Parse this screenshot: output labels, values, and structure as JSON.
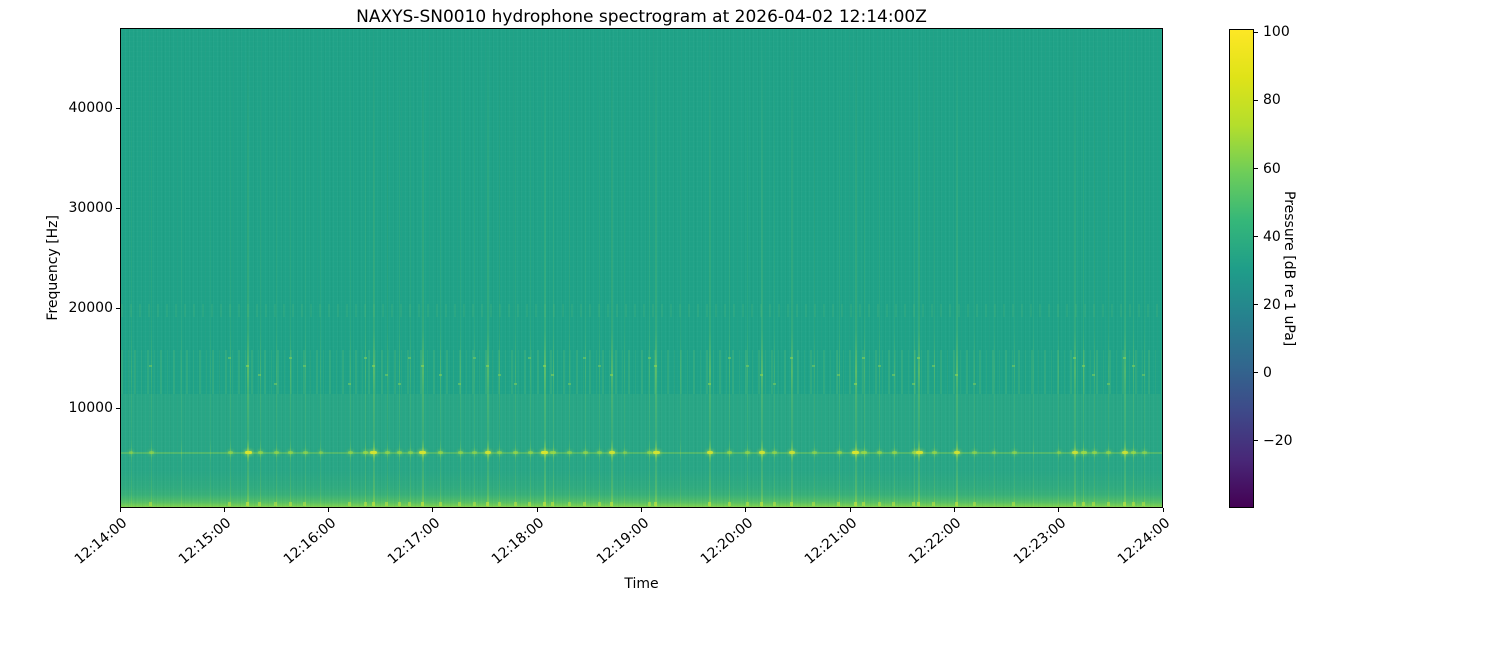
{
  "chart_data": {
    "type": "heatmap",
    "subtype": "spectrogram",
    "title": "NAXYS-SN0010 hydrophone spectrogram at 2026-04-02 12:14:00Z",
    "xlabel": "Time",
    "ylabel": "Frequency [Hz]",
    "x_tick_labels": [
      "12:14:00",
      "12:15:00",
      "12:16:00",
      "12:17:00",
      "12:18:00",
      "12:19:00",
      "12:20:00",
      "12:21:00",
      "12:22:00",
      "12:23:00",
      "12:24:00"
    ],
    "y_tick_values": [
      10000,
      20000,
      30000,
      40000
    ],
    "y_tick_labels": [
      "10000",
      "20000",
      "30000",
      "40000"
    ],
    "y_range_hz": [
      0,
      48000
    ],
    "grid": false,
    "legend": "none",
    "colormap": "viridis",
    "colorbar": {
      "label": "Pressure [dB re 1 uPa]",
      "tick_values": [
        100,
        80,
        60,
        40,
        20,
        0,
        -20
      ],
      "tick_labels": [
        "100",
        "80",
        "60",
        "40",
        "20",
        "0",
        "−20"
      ],
      "value_range": [
        -39.7,
        101
      ]
    },
    "colors": {
      "background_teal": "#1fa287",
      "streak_green": "#a3dd46",
      "tonal_bright": "#d8e52f",
      "low_band_edge": "#84d44c",
      "colorbar_bottom": "#440154",
      "colorbar_top": "#fde725"
    },
    "features": {
      "background_level_db": 47,
      "tonal_line_hz": 5400,
      "broadband_activity_band_hz": [
        11300,
        15800
      ],
      "background_shade_boundary_hz": 11300,
      "low_frequency_band_hz": [
        0,
        1800
      ]
    },
    "transients": [
      [
        0.01,
        0.45
      ],
      [
        0.029,
        0.5
      ],
      [
        0.058,
        0.4
      ],
      [
        0.086,
        0.35
      ],
      [
        0.105,
        0.55
      ],
      [
        0.122,
        0.95
      ],
      [
        0.134,
        0.6
      ],
      [
        0.149,
        0.55
      ],
      [
        0.163,
        0.6
      ],
      [
        0.177,
        0.5
      ],
      [
        0.192,
        0.45
      ],
      [
        0.22,
        0.55
      ],
      [
        0.235,
        0.65
      ],
      [
        0.243,
        0.9
      ],
      [
        0.256,
        0.55
      ],
      [
        0.268,
        0.6
      ],
      [
        0.278,
        0.5
      ],
      [
        0.29,
        0.9
      ],
      [
        0.307,
        0.6
      ],
      [
        0.326,
        0.55
      ],
      [
        0.34,
        0.5
      ],
      [
        0.353,
        0.85
      ],
      [
        0.364,
        0.55
      ],
      [
        0.379,
        0.6
      ],
      [
        0.393,
        0.55
      ],
      [
        0.407,
        0.95
      ],
      [
        0.415,
        0.7
      ],
      [
        0.431,
        0.5
      ],
      [
        0.446,
        0.55
      ],
      [
        0.46,
        0.5
      ],
      [
        0.472,
        0.85
      ],
      [
        0.484,
        0.45
      ],
      [
        0.508,
        0.55
      ],
      [
        0.514,
        0.9
      ],
      [
        0.537,
        0.4
      ],
      [
        0.566,
        0.85
      ],
      [
        0.585,
        0.6
      ],
      [
        0.602,
        0.55
      ],
      [
        0.616,
        0.85
      ],
      [
        0.628,
        0.55
      ],
      [
        0.645,
        0.8
      ],
      [
        0.666,
        0.5
      ],
      [
        0.69,
        0.6
      ],
      [
        0.706,
        0.95
      ],
      [
        0.714,
        0.7
      ],
      [
        0.729,
        0.55
      ],
      [
        0.743,
        0.6
      ],
      [
        0.762,
        0.65
      ],
      [
        0.767,
        0.9
      ],
      [
        0.781,
        0.6
      ],
      [
        0.803,
        0.85
      ],
      [
        0.82,
        0.5
      ],
      [
        0.839,
        0.45
      ],
      [
        0.858,
        0.5
      ],
      [
        0.877,
        0.4
      ],
      [
        0.901,
        0.45
      ],
      [
        0.916,
        0.8
      ],
      [
        0.925,
        0.75
      ],
      [
        0.935,
        0.6
      ],
      [
        0.949,
        0.55
      ],
      [
        0.964,
        0.8
      ],
      [
        0.973,
        0.65
      ],
      [
        0.983,
        0.5
      ]
    ]
  }
}
